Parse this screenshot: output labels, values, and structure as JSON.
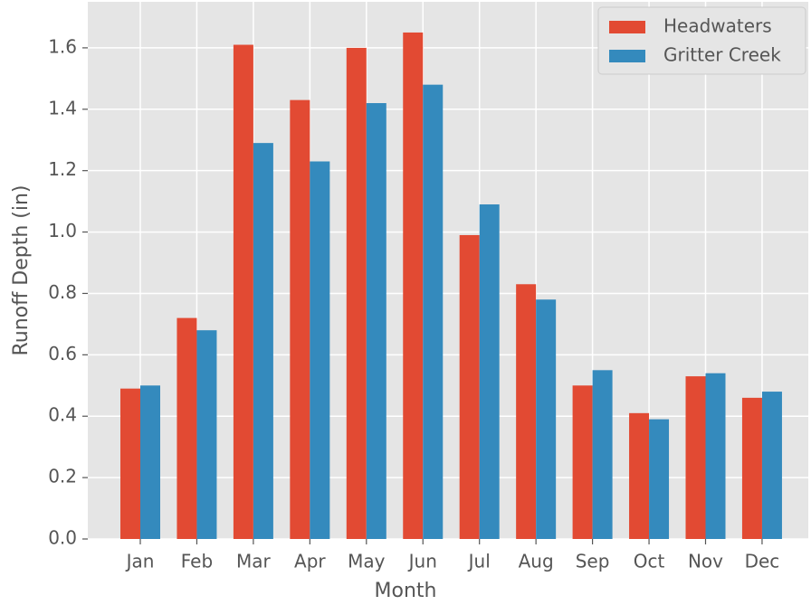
{
  "chart_data": {
    "type": "bar",
    "xlabel": "Month",
    "ylabel": "Runoff Depth (in)",
    "categories": [
      "Jan",
      "Feb",
      "Mar",
      "Apr",
      "May",
      "Jun",
      "Jul",
      "Aug",
      "Sep",
      "Oct",
      "Nov",
      "Dec"
    ],
    "series": [
      {
        "name": "Headwaters",
        "color": "#E24A33",
        "values": [
          0.49,
          0.72,
          1.61,
          1.43,
          1.6,
          1.65,
          0.99,
          0.83,
          0.5,
          0.41,
          0.53,
          0.46
        ]
      },
      {
        "name": "Gritter Creek",
        "color": "#348ABD",
        "values": [
          0.5,
          0.68,
          1.29,
          1.23,
          1.42,
          1.48,
          1.09,
          0.78,
          0.55,
          0.39,
          0.54,
          0.48
        ]
      }
    ],
    "ylim": [
      0,
      1.75
    ],
    "yticks": [
      {
        "value": 0,
        "label": "0.0"
      },
      0.2,
      0.4,
      0.6,
      0.8,
      {
        "value": 1,
        "label": "1.0"
      },
      1.2,
      1.4,
      1.6
    ],
    "grid": true,
    "legend": "upper right"
  }
}
